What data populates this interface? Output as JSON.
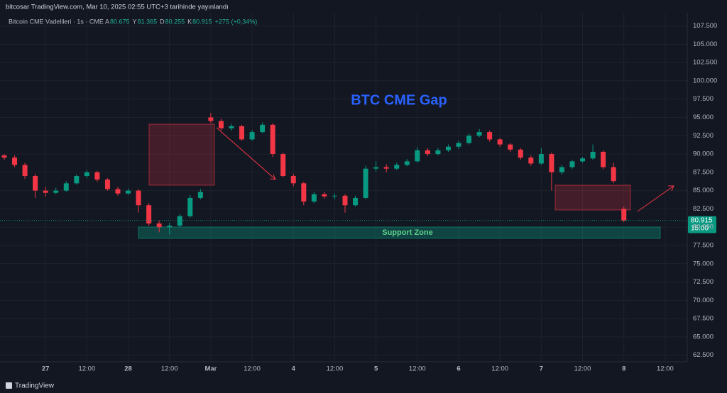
{
  "header": {
    "publisher": "bitcosar TradingView.com, Mar 10, 2025 02:55 UTC+3 tarihinde yayınlandı",
    "symbol": "Bitcoin CME Vadelileri · 1s · CME",
    "ohlc": [
      {
        "label": "A",
        "value": "80.675"
      },
      {
        "label": "Y",
        "value": "81.365"
      },
      {
        "label": "D",
        "value": "80.255"
      },
      {
        "label": "K",
        "value": "80.915"
      }
    ],
    "change": "+275 (+0,34%)"
  },
  "footer": {
    "brand": "TradingView"
  },
  "chart_data": {
    "type": "candlestick",
    "title": "BTC CME Gap",
    "annotation": "Support Zone",
    "last_price": "80.915",
    "countdown": "15:00",
    "up_color": "#089981",
    "down_color": "#f23645",
    "grid": true,
    "xlim": [
      0,
      198
    ],
    "ylim": [
      61.6,
      109.3
    ],
    "xticks": [
      {
        "value": 12,
        "label": "27"
      },
      {
        "value": 24,
        "label": "12:00"
      },
      {
        "value": 36,
        "label": "28"
      },
      {
        "value": 48,
        "label": "12:00"
      },
      {
        "value": 60,
        "label": "Mar"
      },
      {
        "value": 72,
        "label": "12:00"
      },
      {
        "value": 84,
        "label": "4"
      },
      {
        "value": 96,
        "label": "12:00"
      },
      {
        "value": 108,
        "label": "5"
      },
      {
        "value": 120,
        "label": "12:00"
      },
      {
        "value": 132,
        "label": "6"
      },
      {
        "value": 144,
        "label": "12:00"
      },
      {
        "value": 156,
        "label": "7"
      },
      {
        "value": 168,
        "label": "12:00"
      },
      {
        "value": 180,
        "label": "8"
      },
      {
        "value": 192,
        "label": "12:00"
      }
    ],
    "yticks": [
      {
        "value": 62.5,
        "label": "62.500"
      },
      {
        "value": 65,
        "label": "65.000"
      },
      {
        "value": 67.5,
        "label": "67.500"
      },
      {
        "value": 70,
        "label": "70.000"
      },
      {
        "value": 72.5,
        "label": "72.500"
      },
      {
        "value": 75,
        "label": "75.000"
      },
      {
        "value": 77.5,
        "label": "77.500"
      },
      {
        "value": 80,
        "label": "80.000"
      },
      {
        "value": 82.5,
        "label": "82.500"
      },
      {
        "value": 85,
        "label": "85.000"
      },
      {
        "value": 87.5,
        "label": "87.500"
      },
      {
        "value": 90,
        "label": "90.000"
      },
      {
        "value": 92.5,
        "label": "92.500"
      },
      {
        "value": 95,
        "label": "95.000"
      },
      {
        "value": 97.5,
        "label": "97.500"
      },
      {
        "value": 100,
        "label": "100.000"
      },
      {
        "value": 102.5,
        "label": "102.500"
      },
      {
        "value": 105,
        "label": "105.000"
      },
      {
        "value": 107.5,
        "label": "107.500"
      }
    ],
    "x": [
      0,
      3,
      6,
      9,
      12,
      15,
      18,
      21,
      24,
      27,
      30,
      33,
      36,
      39,
      42,
      45,
      48,
      51,
      54,
      57,
      60,
      63,
      66,
      69,
      72,
      75,
      78,
      81,
      84,
      87,
      90,
      93,
      96,
      99,
      102,
      105,
      108,
      111,
      114,
      117,
      120,
      123,
      126,
      129,
      132,
      135,
      138,
      141,
      144,
      147,
      150,
      153,
      156,
      159,
      162,
      165,
      168,
      171,
      174,
      177,
      180
    ],
    "open": [
      89.8,
      89.5,
      88.5,
      87.0,
      85.0,
      84.7,
      85.0,
      86.0,
      87.0,
      87.5,
      86.5,
      85.2,
      84.6,
      85.0,
      83.0,
      80.5,
      80.0,
      80.2,
      81.5,
      84.0,
      95.0,
      94.5,
      93.5,
      93.8,
      92.0,
      93.0,
      94.0,
      90.0,
      87.0,
      86.0,
      83.5,
      84.5,
      84.2,
      84.3,
      83.0,
      84.0,
      88.0,
      88.2,
      88.0,
      88.5,
      89.0,
      90.5,
      90.0,
      90.5,
      91.0,
      91.5,
      92.5,
      93.0,
      92.0,
      91.3,
      90.6,
      89.5,
      88.7,
      90.0,
      87.5,
      88.2,
      89.0,
      89.4,
      90.3,
      88.2,
      82.5
    ],
    "high": [
      90.0,
      89.8,
      88.8,
      87.3,
      85.5,
      85.4,
      86.3,
      87.2,
      87.8,
      87.7,
      86.7,
      85.5,
      85.3,
      85.2,
      83.3,
      80.9,
      80.6,
      81.8,
      84.4,
      85.2,
      95.6,
      94.8,
      94.1,
      94.0,
      93.3,
      94.3,
      94.2,
      90.2,
      87.3,
      86.2,
      84.8,
      84.8,
      84.6,
      84.5,
      84.3,
      88.4,
      89.0,
      88.6,
      88.8,
      89.3,
      90.9,
      90.8,
      90.8,
      91.3,
      91.8,
      92.8,
      93.4,
      93.2,
      92.2,
      91.5,
      90.8,
      89.8,
      90.8,
      90.2,
      88.5,
      89.2,
      89.6,
      91.3,
      90.5,
      88.8,
      82.8
    ],
    "low": [
      89.2,
      88.2,
      86.6,
      84.0,
      84.2,
      84.5,
      84.8,
      85.8,
      86.7,
      86.2,
      85.0,
      84.3,
      84.4,
      82.0,
      80.2,
      79.3,
      79.0,
      80.0,
      81.3,
      83.8,
      94.2,
      93.2,
      93.2,
      91.8,
      91.8,
      92.8,
      89.6,
      86.8,
      85.6,
      83.0,
      83.3,
      83.9,
      83.8,
      82.0,
      82.8,
      83.8,
      87.6,
      87.5,
      87.8,
      88.3,
      88.8,
      89.7,
      89.8,
      90.3,
      90.7,
      91.3,
      92.3,
      91.7,
      91.0,
      90.3,
      89.2,
      88.4,
      88.5,
      85.0,
      87.2,
      88.0,
      88.8,
      89.2,
      87.9,
      86.0,
      80.7
    ],
    "close": [
      89.5,
      88.5,
      87.0,
      85.0,
      84.7,
      85.0,
      86.0,
      87.0,
      87.5,
      86.5,
      85.2,
      84.6,
      85.0,
      83.0,
      80.5,
      80.0,
      80.2,
      81.5,
      84.0,
      84.8,
      94.5,
      93.5,
      93.8,
      92.0,
      93.0,
      94.0,
      90.0,
      87.0,
      86.0,
      83.5,
      84.5,
      84.2,
      84.3,
      83.0,
      84.0,
      88.0,
      88.2,
      88.0,
      88.5,
      89.0,
      90.5,
      90.0,
      90.5,
      91.0,
      91.5,
      92.5,
      93.0,
      92.0,
      91.3,
      90.6,
      89.5,
      88.7,
      90.0,
      87.5,
      88.2,
      89.0,
      89.4,
      90.3,
      88.2,
      86.3,
      80.915
    ]
  }
}
